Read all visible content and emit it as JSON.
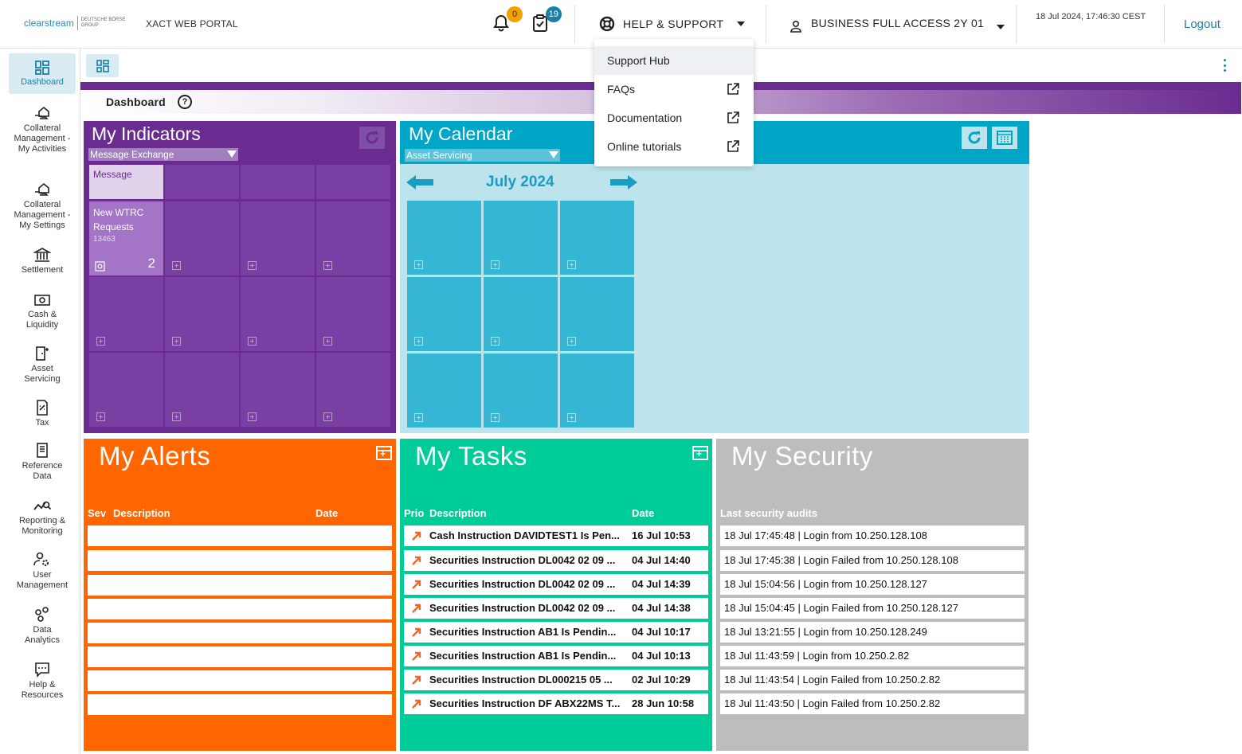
{
  "header": {
    "logo_main": "clearstream",
    "logo_sub": "DEUTSCHE BÖRSE GROUP",
    "portal_name": "XACT WEB PORTAL",
    "notifications_count": "0",
    "tasks_count": "19",
    "help_label": "HELP & SUPPORT",
    "user_label": "BUSINESS FULL ACCESS 2Y 01",
    "datetime": "18 Jul 2024, 17:46:30 CEST",
    "logout_label": "Logout",
    "icons": [
      "bell-icon",
      "task-check-icon",
      "lifebuoy-icon",
      "user-icon"
    ]
  },
  "help_menu": {
    "items": [
      {
        "label": "Support Hub",
        "external": false
      },
      {
        "label": "FAQs",
        "external": true
      },
      {
        "label": "Documentation",
        "external": true
      },
      {
        "label": "Online tutorials",
        "external": true
      }
    ]
  },
  "sidebar": {
    "items": [
      {
        "label": "Dashboard",
        "icon": "dashboard-grid-icon",
        "active": true
      },
      {
        "label": "Collateral Management - My Activities",
        "icon": "hand-house-icon"
      },
      {
        "label": "Collateral Management - My Settings",
        "icon": "hand-house-icon"
      },
      {
        "label": "Settlement",
        "icon": "bank-icon"
      },
      {
        "label": "Cash & Liquidity",
        "icon": "cash-icon"
      },
      {
        "label": "Asset Servicing",
        "icon": "door-icon"
      },
      {
        "label": "Tax",
        "icon": "tax-document-icon"
      },
      {
        "label": "Reference Data",
        "icon": "reference-document-icon"
      },
      {
        "label": "Reporting & Monitoring",
        "icon": "chart-search-icon"
      },
      {
        "label": "User Management",
        "icon": "user-gear-icon"
      },
      {
        "label": "Data Analytics",
        "icon": "data-circles-icon"
      },
      {
        "label": "Help & Resources",
        "icon": "chat-icon"
      }
    ]
  },
  "dashboard": {
    "title": "Dashboard",
    "help_glyph": "?"
  },
  "indicators": {
    "title": "My Indicators",
    "select_value": "Message Exchange",
    "message_tile_label": "Message",
    "tile": {
      "title": "New WTRC Requests",
      "code": "13463",
      "count": "2"
    }
  },
  "calendar": {
    "title": "My Calendar",
    "select_value": "Asset Servicing",
    "month": "July 2024"
  },
  "alerts": {
    "title": "My Alerts",
    "columns": {
      "sev": "Sev",
      "description": "Description",
      "date": "Date"
    },
    "rows": 8
  },
  "tasks": {
    "title": "My Tasks",
    "columns": {
      "prio": "Prio",
      "description": "Description",
      "date": "Date"
    },
    "rows": [
      {
        "description": "Cash Instruction DAVIDTEST1 Is Pen...",
        "date": "16 Jul 10:53"
      },
      {
        "description": "Securities Instruction DL0042 02 09 ...",
        "date": "04 Jul 14:40"
      },
      {
        "description": "Securities Instruction DL0042 02 09 ...",
        "date": "04 Jul 14:39"
      },
      {
        "description": "Securities Instruction DL0042 02 09 ...",
        "date": "04 Jul 14:38"
      },
      {
        "description": "Securities Instruction AB1 Is Pendin...",
        "date": "04 Jul 10:17"
      },
      {
        "description": "Securities Instruction AB1 Is Pendin...",
        "date": "04 Jul 10:13"
      },
      {
        "description": "Securities Instruction DL000215 05 ...",
        "date": "02 Jul 10:29"
      },
      {
        "description": "Securities Instruction DF ABX22MS T...",
        "date": "28 Jun 10:58"
      }
    ]
  },
  "security": {
    "title": "My Security",
    "subtitle": "Last security audits",
    "rows": [
      "18 Jul 17:45:48 | Login from 10.250.128.108",
      "18 Jul 17:45:38 | Login Failed from 10.250.128.108",
      "18 Jul 15:04:56 | Login from 10.250.128.127",
      "18 Jul 15:04:45 | Login Failed from 10.250.128.127",
      "18 Jul 13:21:55 | Login from 10.250.128.249",
      "18 Jul 11:43:59 | Login from 10.250.2.82",
      "18 Jul 11:43:54 | Login Failed from 10.250.2.82",
      "18 Jul 11:43:50 | Login Failed from 10.250.2.82"
    ]
  },
  "colors": {
    "accent": "#1a7fa8",
    "indicators": "#6a2c91",
    "calendar": "#00a6c8",
    "alerts": "#ff6600",
    "tasks": "#00cc99",
    "security": "#bdbdbd"
  }
}
